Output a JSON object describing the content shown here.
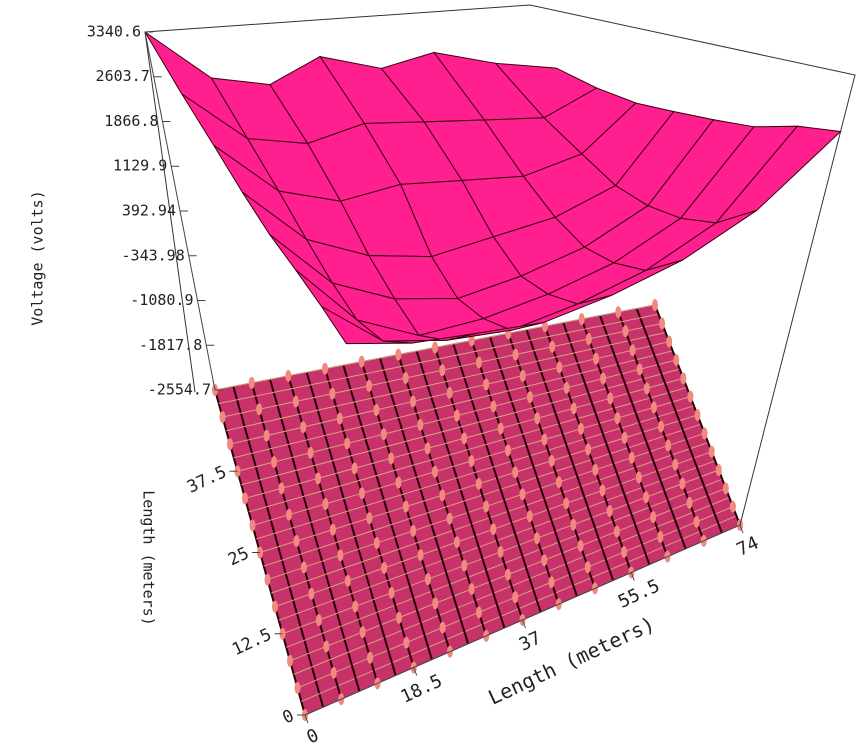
{
  "chart_data": {
    "type": "surface3d",
    "color": "#ff1f8e",
    "edge_color": "#3a0010",
    "floor_color": "#c8326a",
    "x_title": "Length (meters)",
    "y_title": "Length (meters)",
    "z_title": "Voltage (volts)",
    "xlim": [
      0,
      74
    ],
    "xticks": [
      0,
      18.5,
      37,
      55.5,
      74
    ],
    "ylim": [
      0,
      50
    ],
    "yticks": [
      0,
      12.5,
      25,
      37.5
    ],
    "zlim": [
      -2554.7,
      3340.6
    ],
    "zticks": [
      3340.6,
      2603.7,
      1866.8,
      1129.9,
      392.94,
      -343.98,
      -1080.9,
      -1817.8,
      -2554.7
    ],
    "x": [
      0,
      10.6,
      21.1,
      31.7,
      42.3,
      52.9,
      63.4,
      74
    ],
    "y": [
      0,
      7.1,
      14.3,
      21.4,
      28.6,
      35.7,
      42.9,
      50
    ],
    "z": [
      [
        1500,
        1300,
        1200,
        1100,
        1200,
        1400,
        1800,
        2600
      ],
      [
        1600,
        1000,
        800,
        700,
        800,
        1000,
        1400,
        2500
      ],
      [
        1700,
        900,
        500,
        500,
        600,
        800,
        1200,
        2300
      ],
      [
        1800,
        1000,
        600,
        400,
        500,
        700,
        1100,
        2200
      ],
      [
        2000,
        1200,
        800,
        600,
        700,
        800,
        1100,
        2100
      ],
      [
        2300,
        1500,
        1200,
        1300,
        1200,
        1100,
        1300,
        2000
      ],
      [
        2700,
        1900,
        1700,
        1900,
        1800,
        1700,
        1600,
        2000
      ],
      [
        3340.6,
        2500,
        2300,
        2700,
        2400,
        2600,
        2300,
        2100
      ]
    ]
  }
}
